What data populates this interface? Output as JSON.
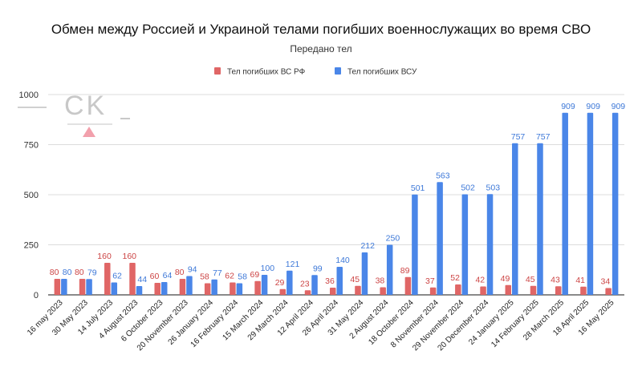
{
  "chart_data": {
    "type": "bar",
    "title": "Обмен между Россией и Украиной телами погибших военнослужащих во время СВО",
    "subtitle": "Передано тел",
    "xlabel": "",
    "ylabel": "",
    "ylim": [
      0,
      1000
    ],
    "yticks": [
      "0",
      "250",
      "500",
      "750",
      "1000"
    ],
    "grid": true,
    "legend_position": "top-center",
    "watermark": "CK",
    "categories": [
      "16 may 2023",
      "30 May 2023",
      "14 July 2023",
      "4 August 2023",
      "6 October 2023",
      "20 November 2023",
      "26 January 2024",
      "16 February 2024",
      "15 March 2024",
      "29 March 2024",
      "12 April 2024",
      "26 April 2024",
      "31 May 2024",
      "2 August 2024",
      "18 October 2024",
      "8 November 2024",
      "29 November 2024",
      "20 December 2024",
      "24 January 2025",
      "14 February 2025",
      "28 March 2025",
      "18 April 2025",
      "16 May 2025"
    ],
    "series": [
      {
        "name": "Тел погибших ВС  РФ",
        "color": "#e06666",
        "values": [
          80,
          80,
          160,
          160,
          60,
          80,
          58,
          62,
          69,
          29,
          23,
          36,
          45,
          38,
          89,
          37,
          52,
          42,
          49,
          45,
          43,
          41,
          34
        ],
        "labels": [
          "80",
          "80",
          "160",
          "160",
          "60",
          "80",
          "58",
          "62",
          "69",
          "29",
          "23",
          "36",
          "45",
          "38",
          "89",
          "37",
          "52",
          "42",
          "49",
          "45",
          "43",
          "41",
          "34"
        ]
      },
      {
        "name": "Тел погибших ВСУ",
        "color": "#4a86e8",
        "values": [
          80,
          79,
          62,
          44,
          64,
          94,
          77,
          58,
          100,
          121,
          99,
          140,
          212,
          250,
          501,
          563,
          502,
          503,
          757,
          757,
          909,
          909,
          909
        ],
        "labels": [
          "80",
          "79",
          "62",
          "44",
          "64",
          "94",
          "77",
          "58",
          "100",
          "121",
          "99",
          "140",
          "212",
          "250",
          "501",
          "563",
          "502",
          "503",
          "757",
          "757",
          "909",
          "909",
          "909"
        ]
      }
    ]
  }
}
